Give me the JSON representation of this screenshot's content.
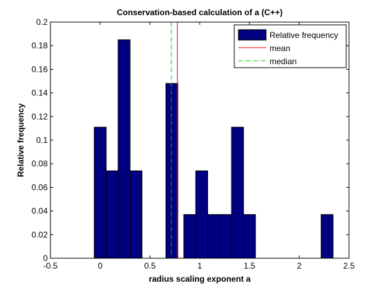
{
  "chart_data": {
    "type": "bar",
    "title": "Conservation-based calculation of a (C++)",
    "xlabel": "radius scaling exponent a",
    "ylabel": "Relative frequency",
    "xlim": [
      -0.5,
      2.5
    ],
    "ylim": [
      0,
      0.2
    ],
    "xticks": [
      "-0.5",
      "0",
      "0.5",
      "1",
      "1.5",
      "2",
      "2.5"
    ],
    "yticks": [
      "0",
      "0.02",
      "0.04",
      "0.06",
      "0.08",
      "0.1",
      "0.12",
      "0.14",
      "0.16",
      "0.18",
      "0.2"
    ],
    "bin_width": 0.12,
    "bins": [
      {
        "x0": -0.06,
        "value": 0.111
      },
      {
        "x0": 0.06,
        "value": 0.074
      },
      {
        "x0": 0.18,
        "value": 0.185
      },
      {
        "x0": 0.3,
        "value": 0.074
      },
      {
        "x0": 0.66,
        "value": 0.148
      },
      {
        "x0": 0.84,
        "value": 0.037
      },
      {
        "x0": 0.96,
        "value": 0.074
      },
      {
        "x0": 1.08,
        "value": 0.037
      },
      {
        "x0": 1.2,
        "value": 0.037
      },
      {
        "x0": 1.32,
        "value": 0.111
      },
      {
        "x0": 1.44,
        "value": 0.037
      },
      {
        "x0": 2.22,
        "value": 0.037
      }
    ],
    "mean": 0.775,
    "median": 0.715,
    "bar_color": "#000080",
    "mean_color": "#ff0000",
    "median_color": "#00cc00",
    "legend": {
      "placement": "top-right",
      "entries": [
        "Relative frequency",
        "mean",
        "median"
      ]
    }
  }
}
